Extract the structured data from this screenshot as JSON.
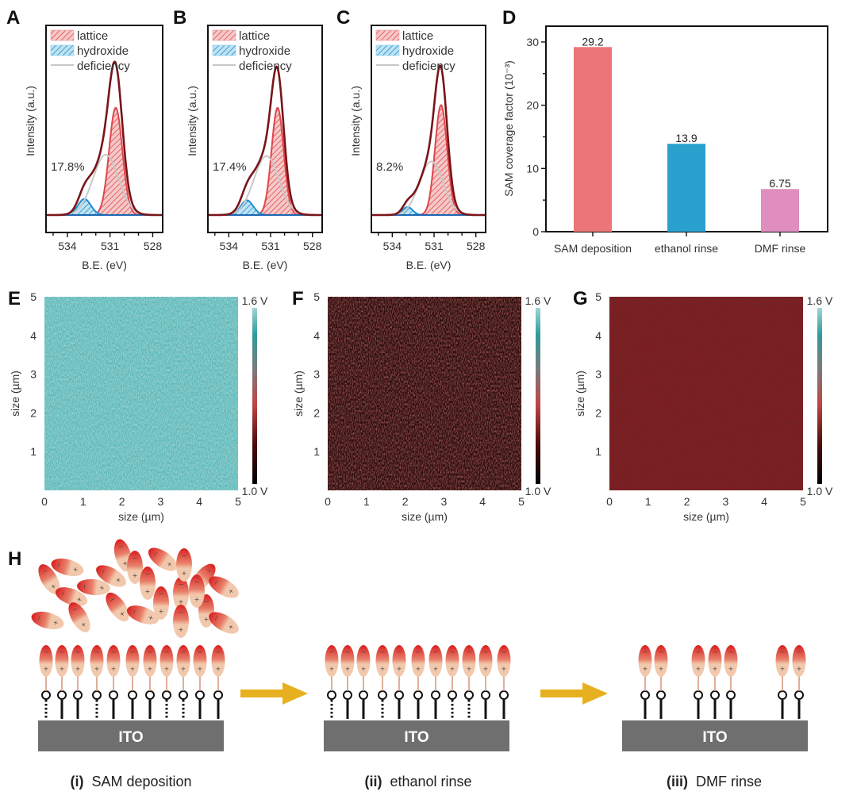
{
  "panel_labels": {
    "A": "A",
    "B": "B",
    "C": "C",
    "D": "D",
    "E": "E",
    "F": "F",
    "G": "G",
    "H": "H"
  },
  "colors": {
    "lattice": "#e0474c",
    "hydroxide": "#1f8fd0",
    "deficiency": "#c8c8c8",
    "envelope": "#7a1418",
    "baseline": "#1a5aa8",
    "bar_sam": "#ec7579",
    "bar_ethanol": "#2aa0cf",
    "bar_dmf": "#e08ebd",
    "map_E": "#5fb8b8",
    "map_F": "#3a1414",
    "map_G": "#8a2428",
    "arrow": "#e6b020",
    "ito": "#6f6f6f"
  },
  "chart_data": [
    {
      "id": "A",
      "type": "line",
      "title": "",
      "xlabel": "B.E. (eV)",
      "ylabel": "Intensity (a.u.)",
      "x_reversed": true,
      "xlim": [
        535.5,
        527.3
      ],
      "xticks": [
        534,
        531,
        528
      ],
      "legend": {
        "position": "top-left",
        "entries": [
          "lattice",
          "hydroxide",
          "deficiency"
        ]
      },
      "annotation": "17.8%",
      "series": [
        {
          "name": "lattice",
          "center": 530.6,
          "height": 0.8,
          "width": 0.75
        },
        {
          "name": "hydroxide",
          "center": 532.8,
          "height": 0.12,
          "width": 0.75
        },
        {
          "name": "deficiency",
          "center": 531.3,
          "height": 0.45,
          "width": 0.9
        },
        {
          "name": "envelope",
          "center": 530.8,
          "height": 1.0
        }
      ]
    },
    {
      "id": "B",
      "type": "line",
      "title": "",
      "xlabel": "B.E. (eV)",
      "ylabel": "Intensity (a.u.)",
      "x_reversed": true,
      "xlim": [
        535.5,
        527.3
      ],
      "xticks": [
        534,
        531,
        528
      ],
      "legend": {
        "position": "top-left",
        "entries": [
          "lattice",
          "hydroxide",
          "deficiency"
        ]
      },
      "annotation": "17.4%",
      "series": [
        {
          "name": "lattice",
          "center": 530.5,
          "height": 0.8,
          "width": 0.7
        },
        {
          "name": "hydroxide",
          "center": 532.7,
          "height": 0.11,
          "width": 0.75
        },
        {
          "name": "deficiency",
          "center": 531.3,
          "height": 0.44,
          "width": 0.9
        },
        {
          "name": "envelope",
          "center": 530.7,
          "height": 1.0
        }
      ]
    },
    {
      "id": "C",
      "type": "line",
      "title": "",
      "xlabel": "B.E. (eV)",
      "ylabel": "Intensity (a.u.)",
      "x_reversed": true,
      "xlim": [
        535.5,
        527.3
      ],
      "xticks": [
        534,
        531,
        528
      ],
      "legend": {
        "position": "top-left",
        "entries": [
          "lattice",
          "hydroxide",
          "deficiency"
        ]
      },
      "annotation": "8.2%",
      "series": [
        {
          "name": "lattice",
          "center": 530.5,
          "height": 0.82,
          "width": 0.7
        },
        {
          "name": "hydroxide",
          "center": 532.9,
          "height": 0.06,
          "width": 0.6
        },
        {
          "name": "deficiency",
          "center": 531.2,
          "height": 0.4,
          "width": 0.85
        },
        {
          "name": "envelope",
          "center": 530.7,
          "height": 1.0
        }
      ]
    },
    {
      "id": "D",
      "type": "bar",
      "title": "",
      "xlabel": "",
      "ylabel": "SAM coverage factor (10⁻³)",
      "ylim": [
        0,
        32.5
      ],
      "yticks": [
        0,
        10,
        20,
        30
      ],
      "categories": [
        "SAM deposition",
        "ethanol rinse",
        "DMF rinse"
      ],
      "values": [
        29.2,
        13.9,
        6.75
      ],
      "value_labels": [
        "29.2",
        "13.9",
        "6.75"
      ]
    },
    {
      "id": "E",
      "type": "heatmap",
      "xlabel": "size (µm)",
      "ylabel": "size (µm)",
      "xlim": [
        0,
        5
      ],
      "ylim": [
        0,
        5
      ],
      "xticks": [
        0,
        1,
        2,
        3,
        4,
        5
      ],
      "yticks": [
        1,
        2,
        3,
        4,
        5
      ],
      "colorbar": {
        "max_label": "1.6 V",
        "min_label": "1.0 V",
        "range": [
          1.0,
          1.6
        ]
      },
      "mean_level": 0.95
    },
    {
      "id": "F",
      "type": "heatmap",
      "xlabel": "size (µm)",
      "ylabel": "size (µm)",
      "xlim": [
        0,
        5
      ],
      "ylim": [
        0,
        5
      ],
      "xticks": [
        0,
        1,
        2,
        3,
        4,
        5
      ],
      "yticks": [
        1,
        2,
        3,
        4,
        5
      ],
      "colorbar": {
        "max_label": "1.6 V",
        "min_label": "1.0 V",
        "range": [
          1.0,
          1.6
        ]
      },
      "mean_level": 0.12
    },
    {
      "id": "G",
      "type": "heatmap",
      "xlabel": "size (µm)",
      "ylabel": "size (µm)",
      "xlim": [
        0,
        5
      ],
      "ylim": [
        0,
        5
      ],
      "xticks": [
        0,
        1,
        2,
        3,
        4,
        5
      ],
      "yticks": [
        1,
        2,
        3,
        4,
        5
      ],
      "colorbar": {
        "max_label": "1.6 V",
        "min_label": "1.0 V",
        "range": [
          1.0,
          1.6
        ]
      },
      "mean_level": 0.3
    }
  ],
  "schematic": {
    "substrate_label": "ITO",
    "stages": [
      {
        "numeral": "(i)",
        "label": "SAM deposition",
        "anchors": 11,
        "bond_types": [
          "dotted",
          "solid",
          "solid",
          "dotted",
          "solid",
          "solid",
          "solid",
          "dotted",
          "dotted",
          "solid",
          "solid"
        ],
        "has_free_molecules": true
      },
      {
        "numeral": "(ii)",
        "label": "ethanol rinse",
        "anchors": 11,
        "bond_types": [
          "dotted",
          "solid",
          "solid",
          "dotted",
          "solid",
          "solid",
          "solid",
          "dotted",
          "dotted",
          "solid",
          "solid"
        ],
        "has_free_molecules": false
      },
      {
        "numeral": "(iii)",
        "label": "DMF rinse",
        "anchors": 7,
        "bond_types": [
          "solid",
          "solid",
          "solid",
          "solid",
          "solid",
          "solid",
          "solid"
        ],
        "has_free_molecules": false
      }
    ],
    "charge_symbols": {
      "negative": "−",
      "positive": "+"
    }
  }
}
